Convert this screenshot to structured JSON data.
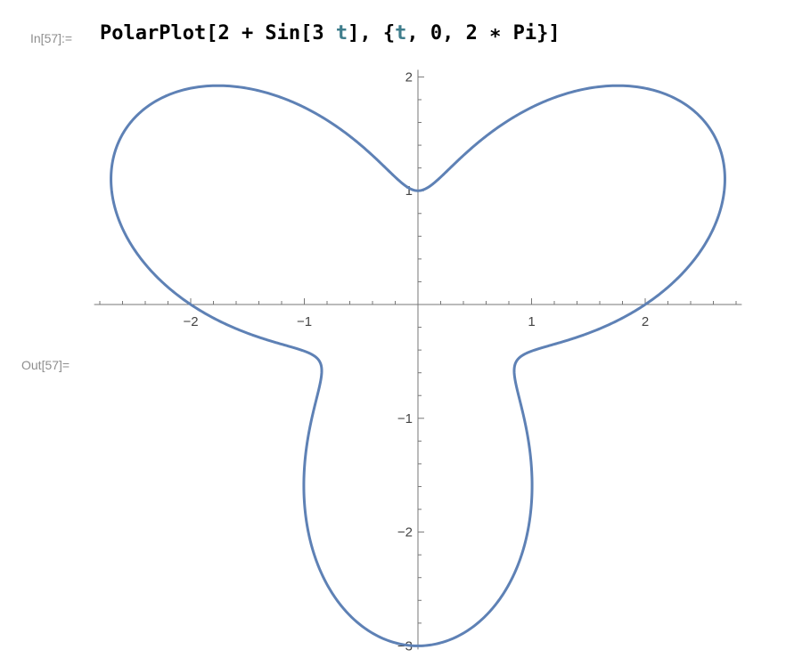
{
  "input_label": "In[57]:=",
  "output_label": "Out[57]=",
  "input_code": {
    "p1": "PolarPlot[2 + Sin[3 ",
    "var1": "t",
    "p2": "], {",
    "var2": "t",
    "p3": ", 0, 2 ",
    "op": "∗",
    "p4": " Pi}]"
  },
  "chart_data": {
    "type": "line",
    "function": "r = 2 + sin(3t), t ∈ [0, 2π] (polar)",
    "series": [
      {
        "color": "#5e81b5"
      }
    ],
    "xlim": [
      -2.85,
      2.85
    ],
    "ylim": [
      -3.0,
      2.0
    ],
    "x_ticks": [
      {
        "value": -2,
        "label": "−2"
      },
      {
        "value": -1,
        "label": "−1"
      },
      {
        "value": 1,
        "label": "1"
      },
      {
        "value": 2,
        "label": "2"
      }
    ],
    "y_ticks": [
      {
        "value": 2,
        "label": "2"
      },
      {
        "value": 1,
        "label": "1"
      },
      {
        "value": -1,
        "label": "−1"
      },
      {
        "value": -2,
        "label": "−2"
      },
      {
        "value": -3,
        "label": "−3"
      }
    ],
    "axis_color": "#777777"
  }
}
